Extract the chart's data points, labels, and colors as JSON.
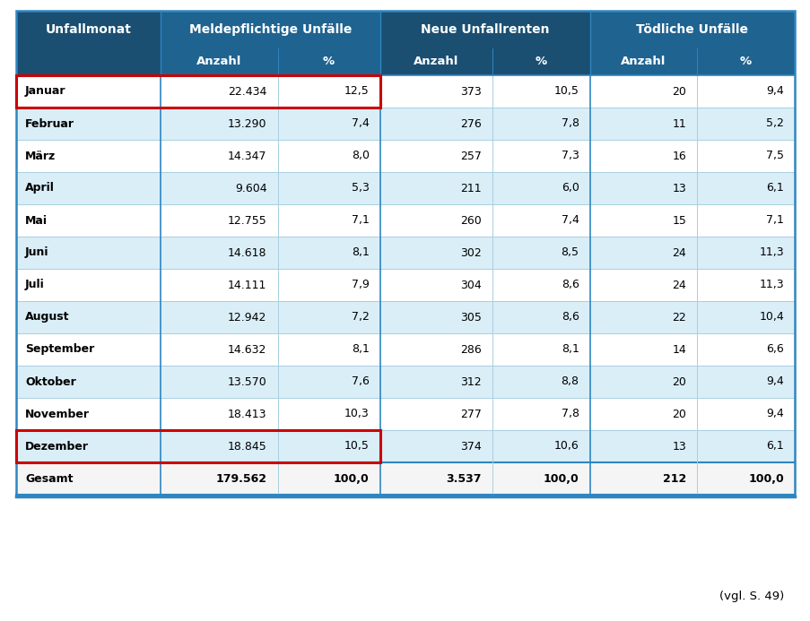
{
  "months": [
    "Januar",
    "Februar",
    "März",
    "April",
    "Mai",
    "Juni",
    "Juli",
    "August",
    "September",
    "Oktober",
    "November",
    "Dezember",
    "Gesamt"
  ],
  "meld_anzahl": [
    "22.434",
    "13.290",
    "14.347",
    "9.604",
    "12.755",
    "14.618",
    "14.111",
    "12.942",
    "14.632",
    "13.570",
    "18.413",
    "18.845",
    "179.562"
  ],
  "meld_pct": [
    "12,5",
    "7,4",
    "8,0",
    "5,3",
    "7,1",
    "8,1",
    "7,9",
    "7,2",
    "8,1",
    "7,6",
    "10,3",
    "10,5",
    "100,0"
  ],
  "neue_anzahl": [
    "373",
    "276",
    "257",
    "211",
    "260",
    "302",
    "304",
    "305",
    "286",
    "312",
    "277",
    "374",
    "3.537"
  ],
  "neue_pct": [
    "10,5",
    "7,8",
    "7,3",
    "6,0",
    "7,4",
    "8,5",
    "8,6",
    "8,6",
    "8,1",
    "8,8",
    "7,8",
    "10,6",
    "100,0"
  ],
  "toedl_anzahl": [
    "20",
    "11",
    "16",
    "13",
    "15",
    "24",
    "24",
    "22",
    "14",
    "20",
    "20",
    "13",
    "212"
  ],
  "toedl_pct": [
    "9,4",
    "5,2",
    "7,5",
    "6,1",
    "7,1",
    "11,3",
    "11,3",
    "10,4",
    "6,6",
    "9,4",
    "9,4",
    "6,1",
    "100,0"
  ],
  "header_dark": "#1a4f72",
  "header_mid": "#1f6391",
  "row_white": "#ffffff",
  "row_light_blue": "#daeef8",
  "row_gesamt": "#f5f5f5",
  "red_border": "#cc0000",
  "border_blue": "#2e86c1",
  "border_thin": "#a8cfe0",
  "footnote": "(vgl. S. 49)"
}
